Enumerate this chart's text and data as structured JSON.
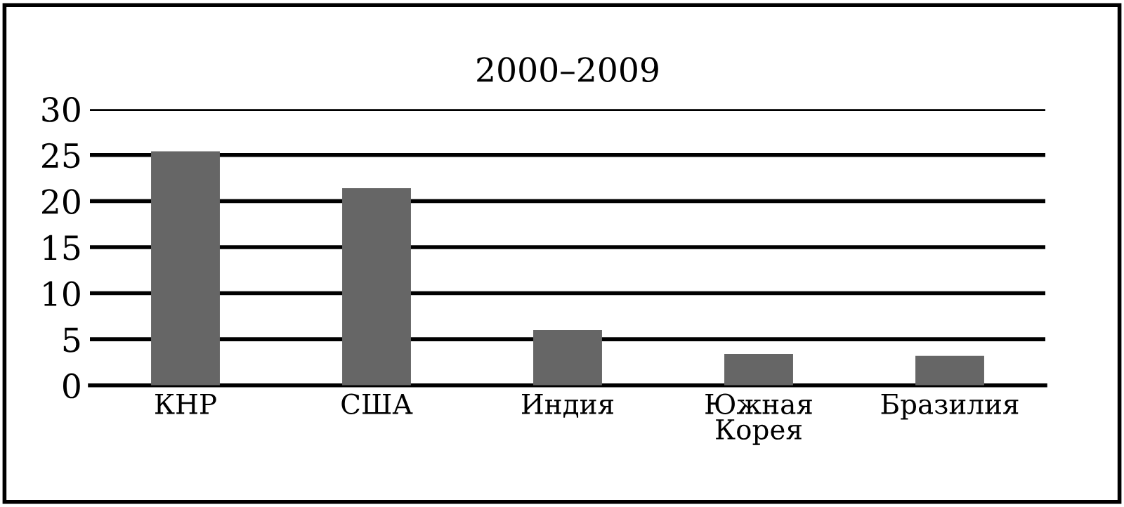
{
  "chart_data": {
    "type": "bar",
    "title": "2000–2009",
    "categories": [
      "КНР",
      "США",
      "Индия",
      "Южная\nКорея",
      "Бразилия"
    ],
    "values": [
      25.4,
      21.4,
      6.0,
      3.4,
      3.2
    ],
    "color": "#666666",
    "ylim": [
      0,
      30
    ],
    "yticks": [
      0,
      5,
      10,
      15,
      20,
      25,
      30
    ],
    "grid": "y"
  }
}
